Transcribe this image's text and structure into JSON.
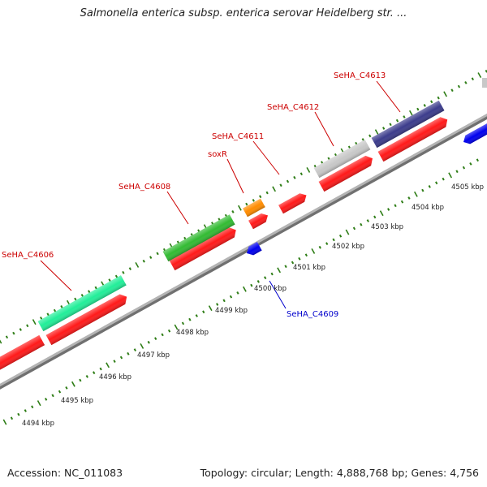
{
  "title": "Salmonella enterica subsp. enterica serovar Heidelberg str. ...",
  "footer": {
    "accession": "Accession: NC_011083",
    "summary": "Topology: circular; Length: 4,888,768 bp; Genes: 4,756"
  },
  "colors": {
    "backbone": "#a9a9a9",
    "tick": "#2e7d16",
    "cds": "#ff1a1a",
    "label_forward": "#cc0000",
    "label_reverse": "#0000cc"
  },
  "map": {
    "scale_labels": [
      "4494 kbp",
      "4495 kbp",
      "4496 kbp",
      "4497 kbp",
      "4498 kbp",
      "4499 kbp",
      "4500 kbp",
      "4501 kbp",
      "4502 kbp",
      "4503 kbp",
      "4504 kbp",
      "4505 kbp"
    ],
    "genes": [
      {
        "label": "SeHA_C4606",
        "strand": "forward",
        "color": "#22ee99"
      },
      {
        "label": "SeHA_C4608",
        "strand": "forward",
        "color": "#33bb33"
      },
      {
        "label": "soxR",
        "strand": "forward",
        "color": "#ff8c00"
      },
      {
        "label": "SeHA_C4611",
        "strand": "forward",
        "color": "#ff1a1a"
      },
      {
        "label": "SeHA_C4612",
        "strand": "forward",
        "color": "#c8c8c8"
      },
      {
        "label": "SeHA_C4613",
        "strand": "forward",
        "color": "#3c3c8c"
      },
      {
        "label": "SeHA_C4609",
        "strand": "reverse",
        "color": "#0000ee"
      }
    ]
  }
}
